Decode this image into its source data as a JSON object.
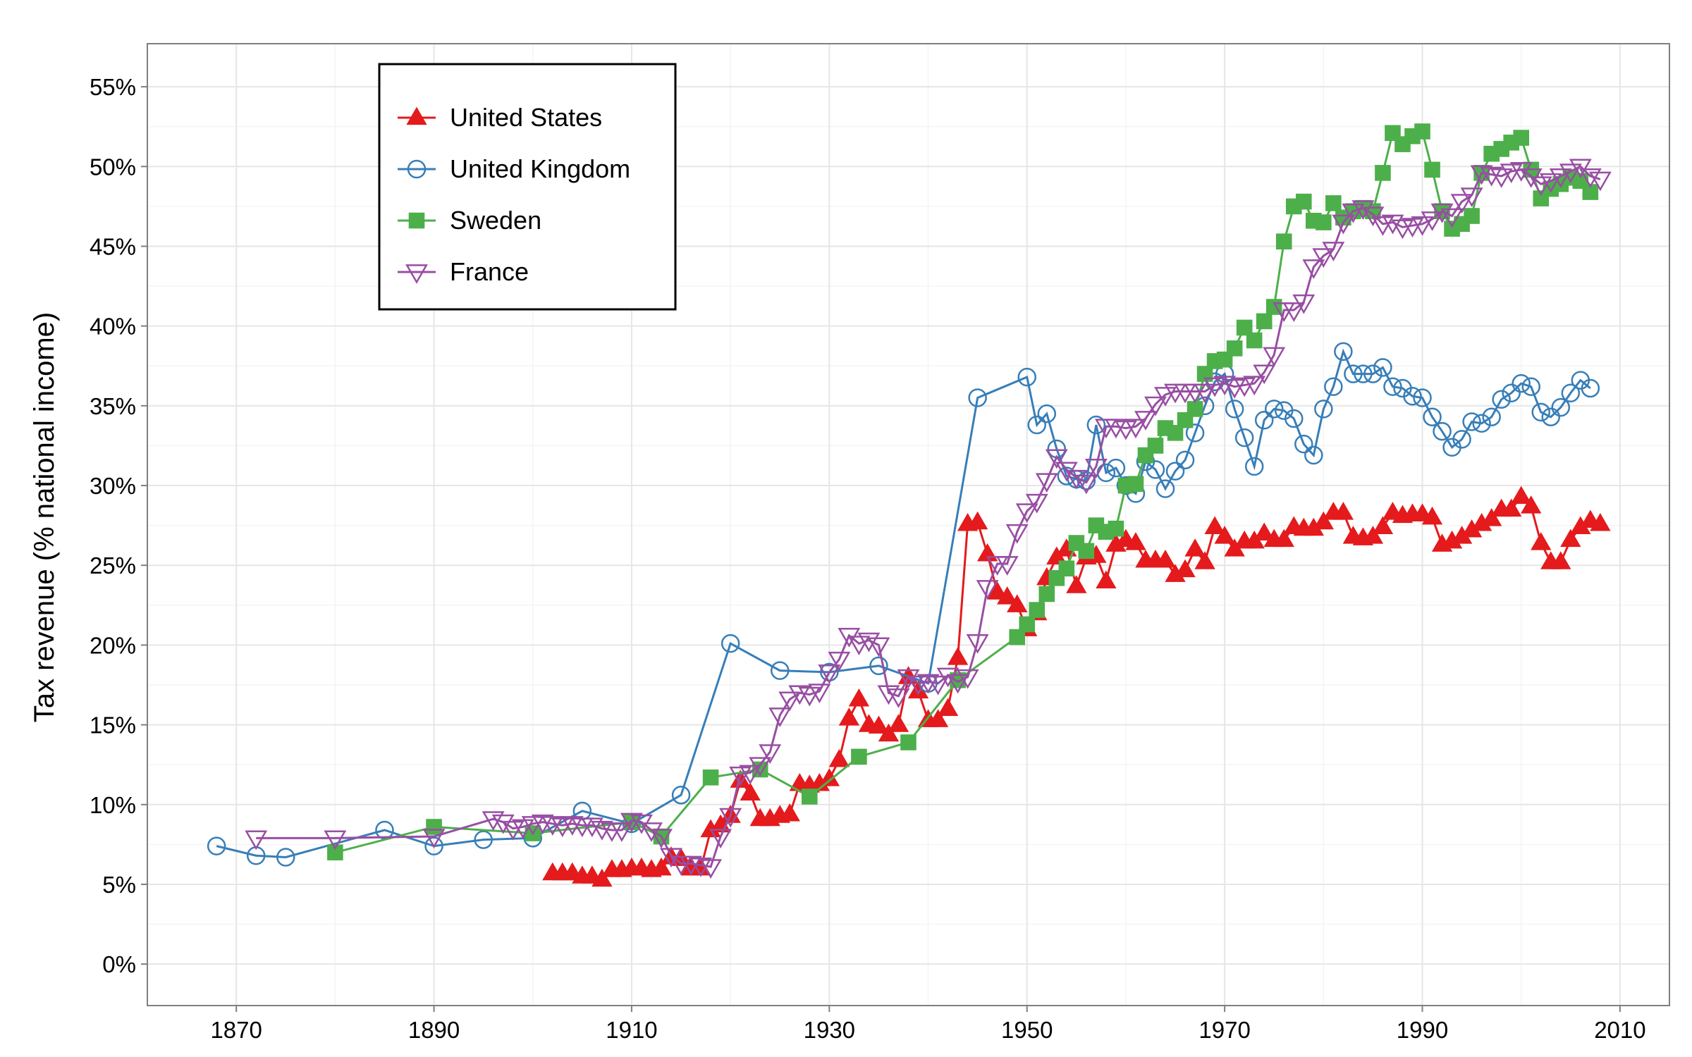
{
  "chart_data": {
    "type": "line",
    "y_label": "Tax revenue (% national income)",
    "xlim": [
      1861,
      2015
    ],
    "ylim": [
      -2.6,
      57.7
    ],
    "xticks": [
      1870,
      1890,
      1910,
      1930,
      1950,
      1970,
      1990,
      2010
    ],
    "x_minor_ticks": [
      1880,
      1900,
      1920,
      1940,
      1960,
      1980,
      2000
    ],
    "yticks": [
      {
        "value": 0,
        "label": "0%"
      },
      {
        "value": 5,
        "label": "5%"
      },
      {
        "value": 10,
        "label": "10%"
      },
      {
        "value": 15,
        "label": "15%"
      },
      {
        "value": 20,
        "label": "20%"
      },
      {
        "value": 25,
        "label": "25%"
      },
      {
        "value": 30,
        "label": "30%"
      },
      {
        "value": 35,
        "label": "35%"
      },
      {
        "value": 40,
        "label": "40%"
      },
      {
        "value": 45,
        "label": "45%"
      },
      {
        "value": 50,
        "label": "50%"
      },
      {
        "value": 55,
        "label": "55%"
      }
    ],
    "y_minor_ticks": [
      2.5,
      7.5,
      12.5,
      17.5,
      22.5,
      27.5,
      32.5,
      37.5,
      42.5,
      47.5,
      52.5
    ],
    "grid": true,
    "legend": "top-left",
    "series": [
      {
        "name": "United States",
        "color": "#e41a1c",
        "marker": "triangle",
        "x": [
          1902,
          1903,
          1904,
          1905,
          1906,
          1907,
          1908,
          1909,
          1910,
          1911,
          1912,
          1913,
          1914,
          1915,
          1916,
          1917,
          1918,
          1919,
          1920,
          1921,
          1922,
          1923,
          1924,
          1925,
          1926,
          1927,
          1928,
          1929,
          1930,
          1931,
          1932,
          1933,
          1934,
          1935,
          1936,
          1937,
          1938,
          1939,
          1940,
          1941,
          1942,
          1943,
          1944,
          1945,
          1946,
          1947,
          1948,
          1949,
          1950,
          1951,
          1952,
          1953,
          1954,
          1955,
          1956,
          1957,
          1958,
          1959,
          1960,
          1961,
          1962,
          1963,
          1964,
          1965,
          1966,
          1967,
          1968,
          1969,
          1970,
          1971,
          1972,
          1973,
          1974,
          1975,
          1976,
          1977,
          1978,
          1979,
          1980,
          1981,
          1982,
          1983,
          1984,
          1985,
          1986,
          1987,
          1988,
          1989,
          1990,
          1991,
          1992,
          1993,
          1994,
          1995,
          1996,
          1997,
          1998,
          1999,
          2000,
          2001,
          2002,
          2003,
          2004,
          2005,
          2006,
          2007,
          2008
        ],
        "values": [
          5.7,
          5.7,
          5.7,
          5.5,
          5.5,
          5.3,
          5.9,
          5.9,
          6.0,
          6.0,
          5.9,
          6.0,
          6.7,
          6.6,
          6.0,
          6.0,
          8.4,
          8.7,
          9.3,
          11.5,
          10.7,
          9.1,
          9.1,
          9.3,
          9.4,
          11.3,
          11.2,
          11.3,
          11.6,
          12.8,
          15.4,
          16.6,
          15.0,
          14.9,
          14.4,
          15.0,
          18.0,
          17.1,
          15.3,
          15.3,
          16.0,
          19.2,
          27.6,
          27.7,
          25.7,
          23.3,
          23.0,
          22.5,
          21.0,
          22.0,
          24.2,
          25.5,
          26.0,
          23.7,
          25.5,
          25.6,
          24.0,
          26.3,
          26.6,
          26.4,
          25.3,
          25.3,
          25.3,
          24.4,
          24.7,
          26.0,
          25.2,
          27.4,
          26.8,
          26.0,
          26.5,
          26.5,
          27.0,
          26.6,
          26.6,
          27.4,
          27.3,
          27.3,
          27.7,
          28.3,
          28.3,
          26.8,
          26.7,
          26.8,
          27.4,
          28.3,
          28.1,
          28.2,
          28.2,
          28.0,
          26.3,
          26.5,
          26.8,
          27.2,
          27.6,
          27.9,
          28.5,
          28.5,
          29.3,
          28.7,
          26.4,
          25.2,
          25.2,
          26.6,
          27.4,
          27.8,
          27.6
        ]
      },
      {
        "name": "United Kingdom",
        "color": "#377eb8",
        "marker": "open-circle",
        "x": [
          1868,
          1872,
          1875,
          1885,
          1890,
          1895,
          1900,
          1905,
          1910,
          1915,
          1920,
          1925,
          1930,
          1935,
          1940,
          1945,
          1950,
          1951,
          1952,
          1953,
          1954,
          1955,
          1956,
          1957,
          1958,
          1959,
          1960,
          1961,
          1962,
          1963,
          1964,
          1965,
          1966,
          1967,
          1968,
          1969,
          1970,
          1971,
          1972,
          1973,
          1974,
          1975,
          1976,
          1977,
          1978,
          1979,
          1980,
          1981,
          1982,
          1983,
          1984,
          1985,
          1986,
          1987,
          1988,
          1989,
          1990,
          1991,
          1992,
          1993,
          1994,
          1995,
          1996,
          1997,
          1998,
          1999,
          2000,
          2001,
          2002,
          2003,
          2004,
          2005,
          2006,
          2007
        ],
        "values": [
          7.4,
          6.8,
          6.7,
          8.4,
          7.4,
          7.8,
          7.9,
          9.6,
          8.8,
          10.6,
          20.1,
          18.4,
          18.3,
          18.7,
          17.6,
          35.5,
          36.8,
          33.8,
          34.5,
          32.3,
          30.6,
          30.4,
          30.3,
          33.8,
          30.8,
          31.1,
          30.0,
          29.5,
          31.5,
          31.0,
          29.8,
          30.9,
          31.6,
          33.3,
          35.0,
          36.5,
          37.0,
          34.8,
          33.0,
          31.2,
          34.1,
          34.8,
          34.7,
          34.2,
          32.6,
          31.9,
          34.8,
          36.2,
          38.4,
          37.0,
          37.0,
          37.0,
          37.4,
          36.2,
          36.1,
          35.6,
          35.5,
          34.3,
          33.4,
          32.4,
          32.9,
          34.0,
          33.9,
          34.3,
          35.4,
          35.8,
          36.4,
          36.2,
          34.6,
          34.3,
          34.9,
          35.8,
          36.6,
          36.1
        ]
      },
      {
        "name": "Sweden",
        "color": "#4daf4a",
        "marker": "square",
        "x": [
          1880,
          1890,
          1900,
          1910,
          1913,
          1918,
          1923,
          1928,
          1933,
          1938,
          1943,
          1949,
          1950,
          1951,
          1952,
          1953,
          1954,
          1955,
          1956,
          1957,
          1958,
          1959,
          1960,
          1961,
          1962,
          1963,
          1964,
          1965,
          1966,
          1967,
          1968,
          1969,
          1970,
          1971,
          1972,
          1973,
          1974,
          1975,
          1976,
          1977,
          1978,
          1979,
          1980,
          1981,
          1982,
          1983,
          1984,
          1985,
          1986,
          1987,
          1988,
          1989,
          1990,
          1991,
          1992,
          1993,
          1994,
          1995,
          1996,
          1997,
          1998,
          1999,
          2000,
          2001,
          2002,
          2003,
          2004,
          2005,
          2006,
          2007
        ],
        "values": [
          7.0,
          8.6,
          8.2,
          8.9,
          8.0,
          11.7,
          12.2,
          10.5,
          13.0,
          13.9,
          17.8,
          20.5,
          21.3,
          22.2,
          23.2,
          24.2,
          24.8,
          26.4,
          25.9,
          27.5,
          27.1,
          27.3,
          30.0,
          30.1,
          31.9,
          32.5,
          33.6,
          33.3,
          34.1,
          34.8,
          37.0,
          37.8,
          37.9,
          38.6,
          39.9,
          39.1,
          40.3,
          41.2,
          45.3,
          47.5,
          47.8,
          46.6,
          46.5,
          47.7,
          46.8,
          47.2,
          47.4,
          47.2,
          49.6,
          52.1,
          51.4,
          51.9,
          52.2,
          49.8,
          47.2,
          46.1,
          46.4,
          46.9,
          49.6,
          50.8,
          51.1,
          51.5,
          51.8,
          49.8,
          48.0,
          48.6,
          48.9,
          49.3,
          49.1,
          48.4
        ]
      },
      {
        "name": "France",
        "color": "#984ea3",
        "marker": "open-triangle-down",
        "x": [
          1872,
          1880,
          1890,
          1896,
          1897,
          1898,
          1899,
          1900,
          1901,
          1902,
          1903,
          1904,
          1905,
          1906,
          1907,
          1908,
          1909,
          1910,
          1911,
          1912,
          1913,
          1914,
          1915,
          1916,
          1917,
          1918,
          1919,
          1920,
          1921,
          1922,
          1923,
          1924,
          1925,
          1926,
          1927,
          1928,
          1929,
          1930,
          1931,
          1932,
          1933,
          1934,
          1935,
          1936,
          1937,
          1938,
          1939,
          1940,
          1941,
          1942,
          1943,
          1944,
          1945,
          1946,
          1947,
          1948,
          1949,
          1950,
          1951,
          1952,
          1953,
          1954,
          1955,
          1956,
          1957,
          1958,
          1959,
          1960,
          1961,
          1962,
          1963,
          1964,
          1965,
          1966,
          1967,
          1968,
          1969,
          1970,
          1971,
          1972,
          1973,
          1974,
          1975,
          1976,
          1977,
          1978,
          1979,
          1980,
          1981,
          1982,
          1983,
          1984,
          1985,
          1986,
          1987,
          1988,
          1989,
          1990,
          1991,
          1992,
          1993,
          1994,
          1995,
          1996,
          1997,
          1998,
          1999,
          2000,
          2001,
          2002,
          2003,
          2004,
          2005,
          2006,
          2007,
          2008
        ],
        "values": [
          7.9,
          7.9,
          8.0,
          9.1,
          8.9,
          8.5,
          8.6,
          8.8,
          8.9,
          8.8,
          8.7,
          8.8,
          8.7,
          8.7,
          8.5,
          8.4,
          8.4,
          9.0,
          8.9,
          8.4,
          8.0,
          6.8,
          6.3,
          6.3,
          6.2,
          6.1,
          8.0,
          9.3,
          11.9,
          12.0,
          12.5,
          13.3,
          15.6,
          16.6,
          17.0,
          16.9,
          17.1,
          18.3,
          19.1,
          20.6,
          20.1,
          20.3,
          20.0,
          17.0,
          16.8,
          18.0,
          17.6,
          17.7,
          17.6,
          18.1,
          17.7,
          18.0,
          20.2,
          23.6,
          25.1,
          25.1,
          27.1,
          28.4,
          29.0,
          30.3,
          31.8,
          31.0,
          30.5,
          30.2,
          31.2,
          33.7,
          33.7,
          33.6,
          33.7,
          34.2,
          35.1,
          35.7,
          35.9,
          35.9,
          35.9,
          35.9,
          36.3,
          36.4,
          36.2,
          36.3,
          36.4,
          37.1,
          38.2,
          41.0,
          41.0,
          41.5,
          43.7,
          44.4,
          44.8,
          46.5,
          47.2,
          47.4,
          47.0,
          46.4,
          46.5,
          46.2,
          46.3,
          46.4,
          46.7,
          47.2,
          46.9,
          47.8,
          48.2,
          49.6,
          49.5,
          49.4,
          49.7,
          49.8,
          49.4,
          48.9,
          49.1,
          49.4,
          49.7,
          50.0,
          49.4,
          49.2
        ]
      }
    ]
  }
}
